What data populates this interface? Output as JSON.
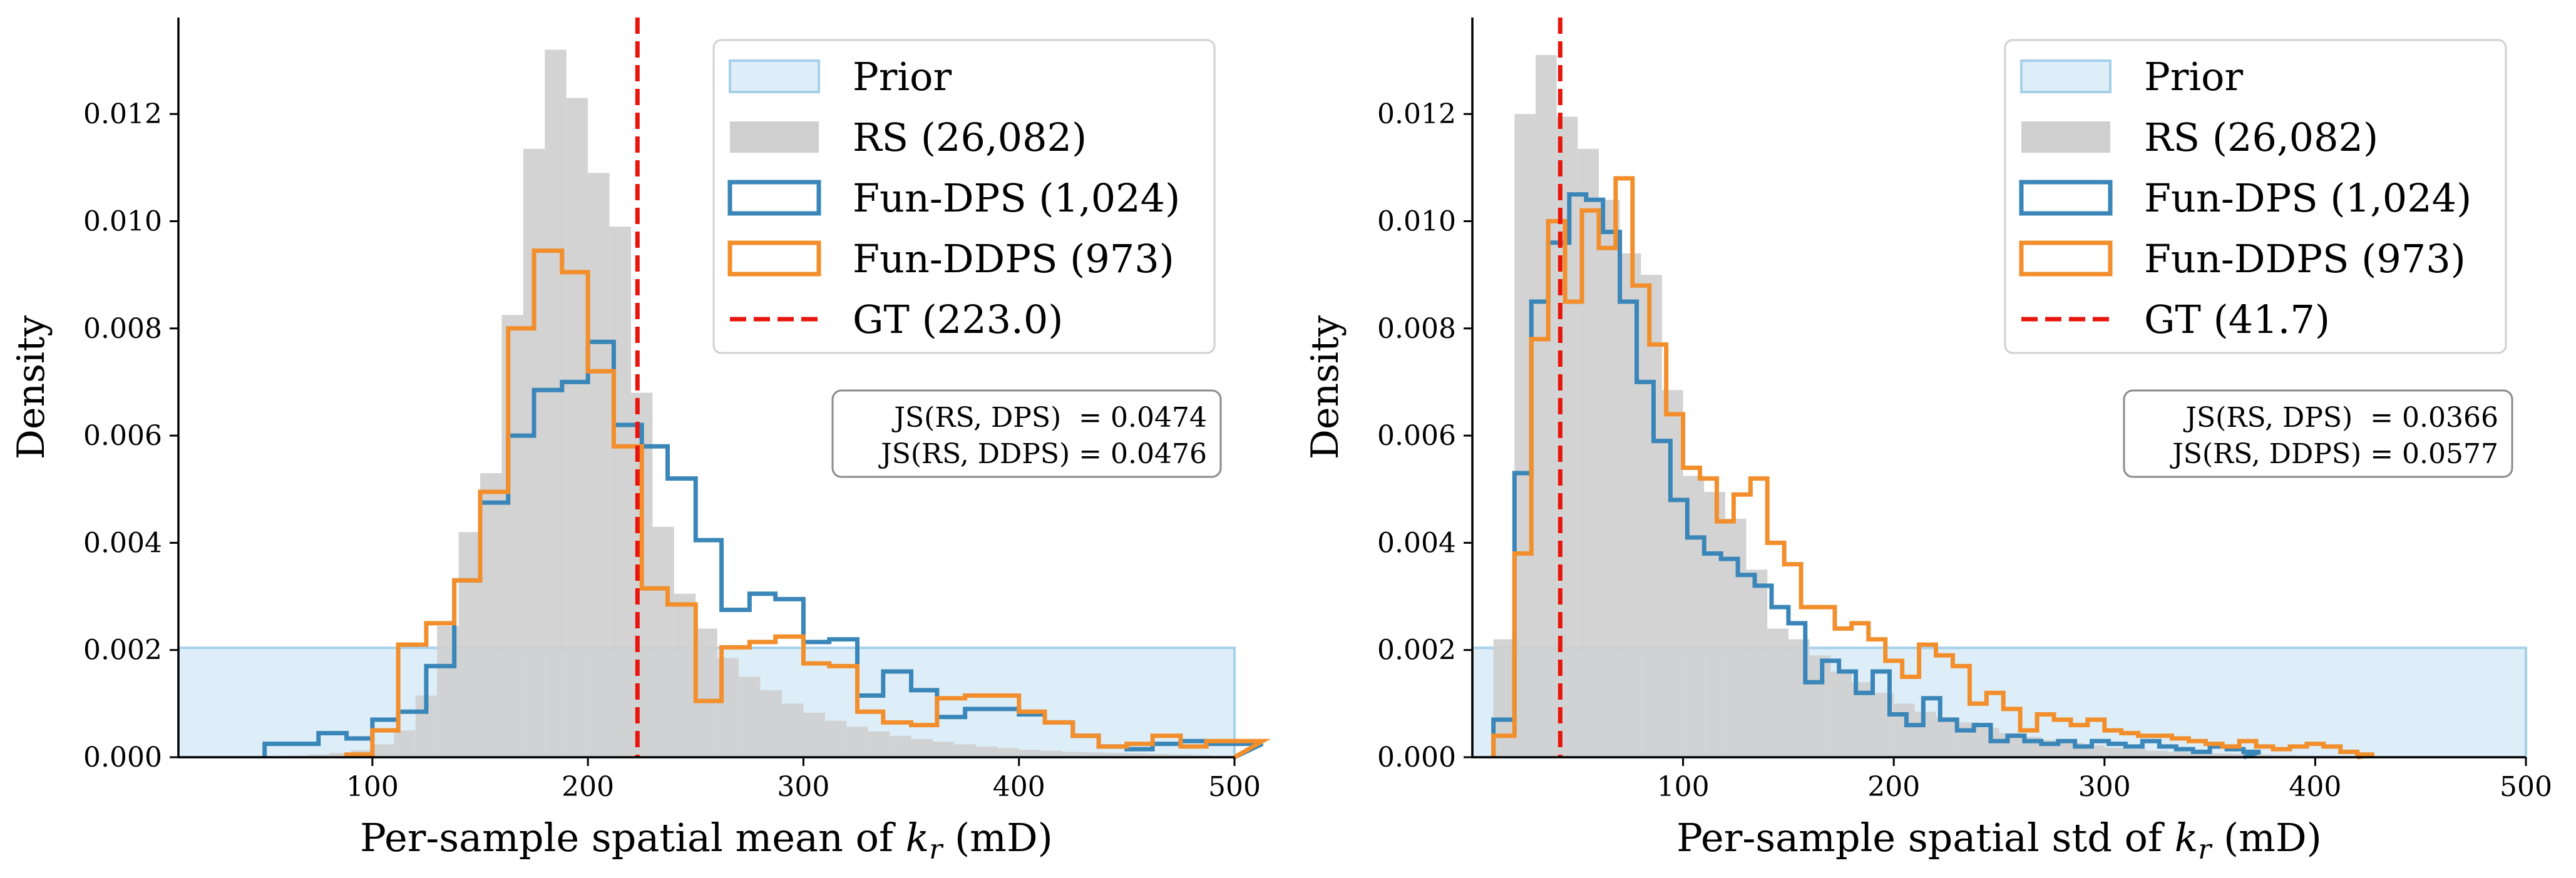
{
  "chart_data": [
    {
      "type": "histogram",
      "title": "",
      "xlabel": "Per-sample spatial mean of k_r (mD)",
      "xlabel_parts": {
        "pre": "Per-sample spatial mean of ",
        "var": "k",
        "sub": "r",
        "post": " (mD)"
      },
      "ylabel": "Density",
      "xlim": [
        10,
        500
      ],
      "ylim": [
        0,
        0.0138
      ],
      "xticks": [
        100,
        200,
        300,
        400,
        500
      ],
      "yticks": [
        0.0,
        0.002,
        0.004,
        0.006,
        0.008,
        0.01,
        0.012
      ],
      "ytick_labels": [
        "0.000",
        "0.002",
        "0.004",
        "0.006",
        "0.008",
        "0.010",
        "0.012"
      ],
      "legend_position": "top-right",
      "legend": [
        "Prior",
        "RS (26,082)",
        "Fun-DPS (1,024)",
        "Fun-DDPS (973)",
        "GT (223.0)"
      ],
      "annotation": [
        "JS(RS, DPS)  = 0.0474",
        "JS(RS, DDPS) = 0.0476"
      ],
      "prior": {
        "x0": 10,
        "x1": 500,
        "density": 0.00204
      },
      "gt_line": {
        "x": 223.0
      },
      "rs": {
        "bin_edges": [
          50,
          60,
          70,
          80,
          90,
          100,
          110,
          120,
          130,
          140,
          150,
          160,
          170,
          180,
          190,
          200,
          210,
          220,
          230,
          240,
          250,
          260,
          270,
          280,
          290,
          300,
          310,
          320,
          330,
          340,
          350,
          360,
          370,
          380,
          390,
          400,
          410,
          420,
          430,
          440,
          450,
          460,
          470,
          480,
          490,
          500
        ],
        "density": [
          2e-05,
          3e-05,
          5e-05,
          8e-05,
          0.00013,
          0.00024,
          0.0005,
          0.00115,
          0.00245,
          0.0042,
          0.0053,
          0.00825,
          0.01135,
          0.0132,
          0.0123,
          0.0109,
          0.0099,
          0.0068,
          0.0043,
          0.00305,
          0.0024,
          0.00185,
          0.0015,
          0.00125,
          0.001,
          0.00083,
          0.00068,
          0.00057,
          0.00048,
          0.0004,
          0.00034,
          0.00029,
          0.00024,
          0.0002,
          0.00017,
          0.00014,
          0.00012,
          0.0001,
          9e-05,
          8e-05,
          7e-05,
          6e-05,
          5e-05,
          4e-05,
          3e-05
        ]
      },
      "dps": {
        "x": [
          50,
          75,
          88,
          100,
          112,
          125,
          138,
          150,
          163,
          175,
          188,
          200,
          212,
          225,
          237,
          250,
          262,
          275,
          287,
          300,
          312,
          325,
          337,
          350,
          362,
          375,
          387,
          400,
          412,
          425,
          437,
          450,
          462,
          475,
          487,
          500
        ],
        "density": [
          0.00025,
          0.00045,
          0.00035,
          0.0007,
          0.00085,
          0.0017,
          0.0033,
          0.00475,
          0.006,
          0.00685,
          0.007,
          0.00775,
          0.0062,
          0.0058,
          0.0052,
          0.00405,
          0.00275,
          0.00305,
          0.00295,
          0.00215,
          0.0022,
          0.00115,
          0.0016,
          0.00125,
          0.00075,
          0.0009,
          0.0009,
          0.0008,
          0.00065,
          0.0004,
          0.0002,
          0.00015,
          0.00025,
          0.0003,
          0.00025,
          0.00025
        ]
      },
      "ddps": {
        "x": [
          88,
          100,
          112,
          125,
          138,
          150,
          163,
          175,
          188,
          200,
          212,
          225,
          237,
          250,
          262,
          275,
          287,
          300,
          312,
          325,
          337,
          350,
          362,
          375,
          387,
          400,
          412,
          425,
          437,
          450,
          462,
          475,
          487,
          500
        ],
        "density": [
          5e-05,
          0.0005,
          0.0021,
          0.0025,
          0.0033,
          0.00495,
          0.008,
          0.00945,
          0.00905,
          0.0072,
          0.0058,
          0.00315,
          0.00285,
          0.00105,
          0.00205,
          0.00215,
          0.00225,
          0.00175,
          0.0017,
          0.00085,
          0.00065,
          0.0006,
          0.0011,
          0.00115,
          0.00115,
          0.00085,
          0.00065,
          0.0004,
          0.0002,
          0.00025,
          0.0004,
          0.0002,
          0.0003,
          0.0003
        ]
      }
    },
    {
      "type": "histogram",
      "title": "",
      "xlabel": "Per-sample spatial std of k_r (mD)",
      "xlabel_parts": {
        "pre": "Per-sample spatial std of ",
        "var": "k",
        "sub": "r",
        "post": " (mD)"
      },
      "ylabel": "Density",
      "xlim": [
        0,
        500
      ],
      "ylim": [
        0,
        0.0138
      ],
      "xticks": [
        100,
        200,
        300,
        400,
        500
      ],
      "yticks": [
        0.0,
        0.002,
        0.004,
        0.006,
        0.008,
        0.01,
        0.012
      ],
      "ytick_labels": [
        "0.000",
        "0.002",
        "0.004",
        "0.006",
        "0.008",
        "0.010",
        "0.012"
      ],
      "legend_position": "top-right",
      "legend": [
        "Prior",
        "RS (26,082)",
        "Fun-DPS (1,024)",
        "Fun-DDPS (973)",
        "GT (41.7)"
      ],
      "annotation": [
        "JS(RS, DPS)  = 0.0366",
        "JS(RS, DDPS) = 0.0577"
      ],
      "prior": {
        "x0": 0,
        "x1": 500,
        "density": 0.00204
      },
      "gt_line": {
        "x": 41.7
      },
      "rs": {
        "bin_edges": [
          10,
          20,
          30,
          40,
          50,
          60,
          70,
          80,
          90,
          100,
          110,
          120,
          130,
          140,
          150,
          160,
          170,
          180,
          190,
          200,
          210,
          220,
          230,
          240,
          250,
          260,
          270,
          280,
          290,
          300,
          310,
          320,
          330,
          340,
          350,
          360,
          370,
          380,
          390,
          400,
          410,
          420,
          430,
          440,
          450
        ],
        "density": [
          0.0022,
          0.012,
          0.0131,
          0.01195,
          0.01135,
          0.0104,
          0.0094,
          0.009,
          0.00685,
          0.00525,
          0.00495,
          0.00445,
          0.0035,
          0.0024,
          0.0022,
          0.0019,
          0.0016,
          0.0014,
          0.0012,
          0.001,
          0.00085,
          0.00075,
          0.00065,
          0.00055,
          0.00045,
          0.00038,
          0.00032,
          0.00027,
          0.00022,
          0.00018,
          0.00015,
          0.00012,
          0.0001,
          8e-05,
          7e-05,
          6e-05,
          5e-05,
          4e-05,
          3e-05,
          3e-05,
          2e-05,
          2e-05,
          1e-05,
          1e-05
        ]
      },
      "dps": {
        "x": [
          10,
          20,
          28,
          36,
          46,
          54,
          62,
          70,
          78,
          86,
          94,
          102,
          110,
          118,
          126,
          134,
          142,
          150,
          158,
          166,
          174,
          182,
          190,
          198,
          206,
          214,
          222,
          230,
          238,
          246,
          254,
          262,
          270,
          278,
          286,
          294,
          302,
          310,
          318,
          326,
          334,
          342,
          350,
          358,
          366
        ],
        "density": [
          0.0007,
          0.0053,
          0.0085,
          0.0096,
          0.0105,
          0.0104,
          0.0098,
          0.0085,
          0.007,
          0.0059,
          0.0048,
          0.0041,
          0.0038,
          0.0037,
          0.0034,
          0.0032,
          0.0028,
          0.0025,
          0.0014,
          0.0018,
          0.0016,
          0.0012,
          0.0016,
          0.0008,
          0.0006,
          0.0011,
          0.0007,
          0.0005,
          0.0006,
          0.0003,
          0.0004,
          0.0003,
          0.00025,
          0.0003,
          0.0002,
          0.0003,
          0.00025,
          0.0002,
          0.0003,
          0.0002,
          0.00015,
          0.0001,
          0.0002,
          0.00015,
          0.0001
        ]
      },
      "ddps": {
        "x": [
          10,
          20,
          28,
          36,
          44,
          52,
          60,
          68,
          76,
          84,
          92,
          100,
          108,
          116,
          124,
          132,
          140,
          148,
          156,
          164,
          172,
          180,
          188,
          196,
          204,
          212,
          220,
          228,
          236,
          244,
          252,
          260,
          268,
          276,
          284,
          292,
          300,
          308,
          316,
          324,
          332,
          340,
          348,
          356,
          364,
          372,
          380,
          388,
          396,
          404,
          412,
          420
        ],
        "density": [
          0.0004,
          0.0038,
          0.0078,
          0.01,
          0.0085,
          0.0102,
          0.0095,
          0.0108,
          0.0088,
          0.0077,
          0.0064,
          0.0054,
          0.0052,
          0.0044,
          0.0049,
          0.0052,
          0.004,
          0.0036,
          0.0028,
          0.0028,
          0.0024,
          0.0025,
          0.0022,
          0.0018,
          0.0015,
          0.0021,
          0.0019,
          0.0017,
          0.001,
          0.0012,
          0.0009,
          0.0005,
          0.0008,
          0.0007,
          0.0006,
          0.0007,
          0.0005,
          0.00045,
          0.0004,
          0.0004,
          0.00035,
          0.0003,
          0.00025,
          0.0002,
          0.0003,
          0.0002,
          0.00015,
          0.0002,
          0.00025,
          0.0002,
          0.0001,
          5e-05
        ]
      }
    }
  ],
  "colors": {
    "prior_fill": "#ddeef8",
    "prior_edge": "#a6d0ea",
    "rs_fill": "#cfcfcf",
    "dps": "#3a86b9",
    "ddps": "#f28e2b",
    "gt": "#e8150d"
  }
}
